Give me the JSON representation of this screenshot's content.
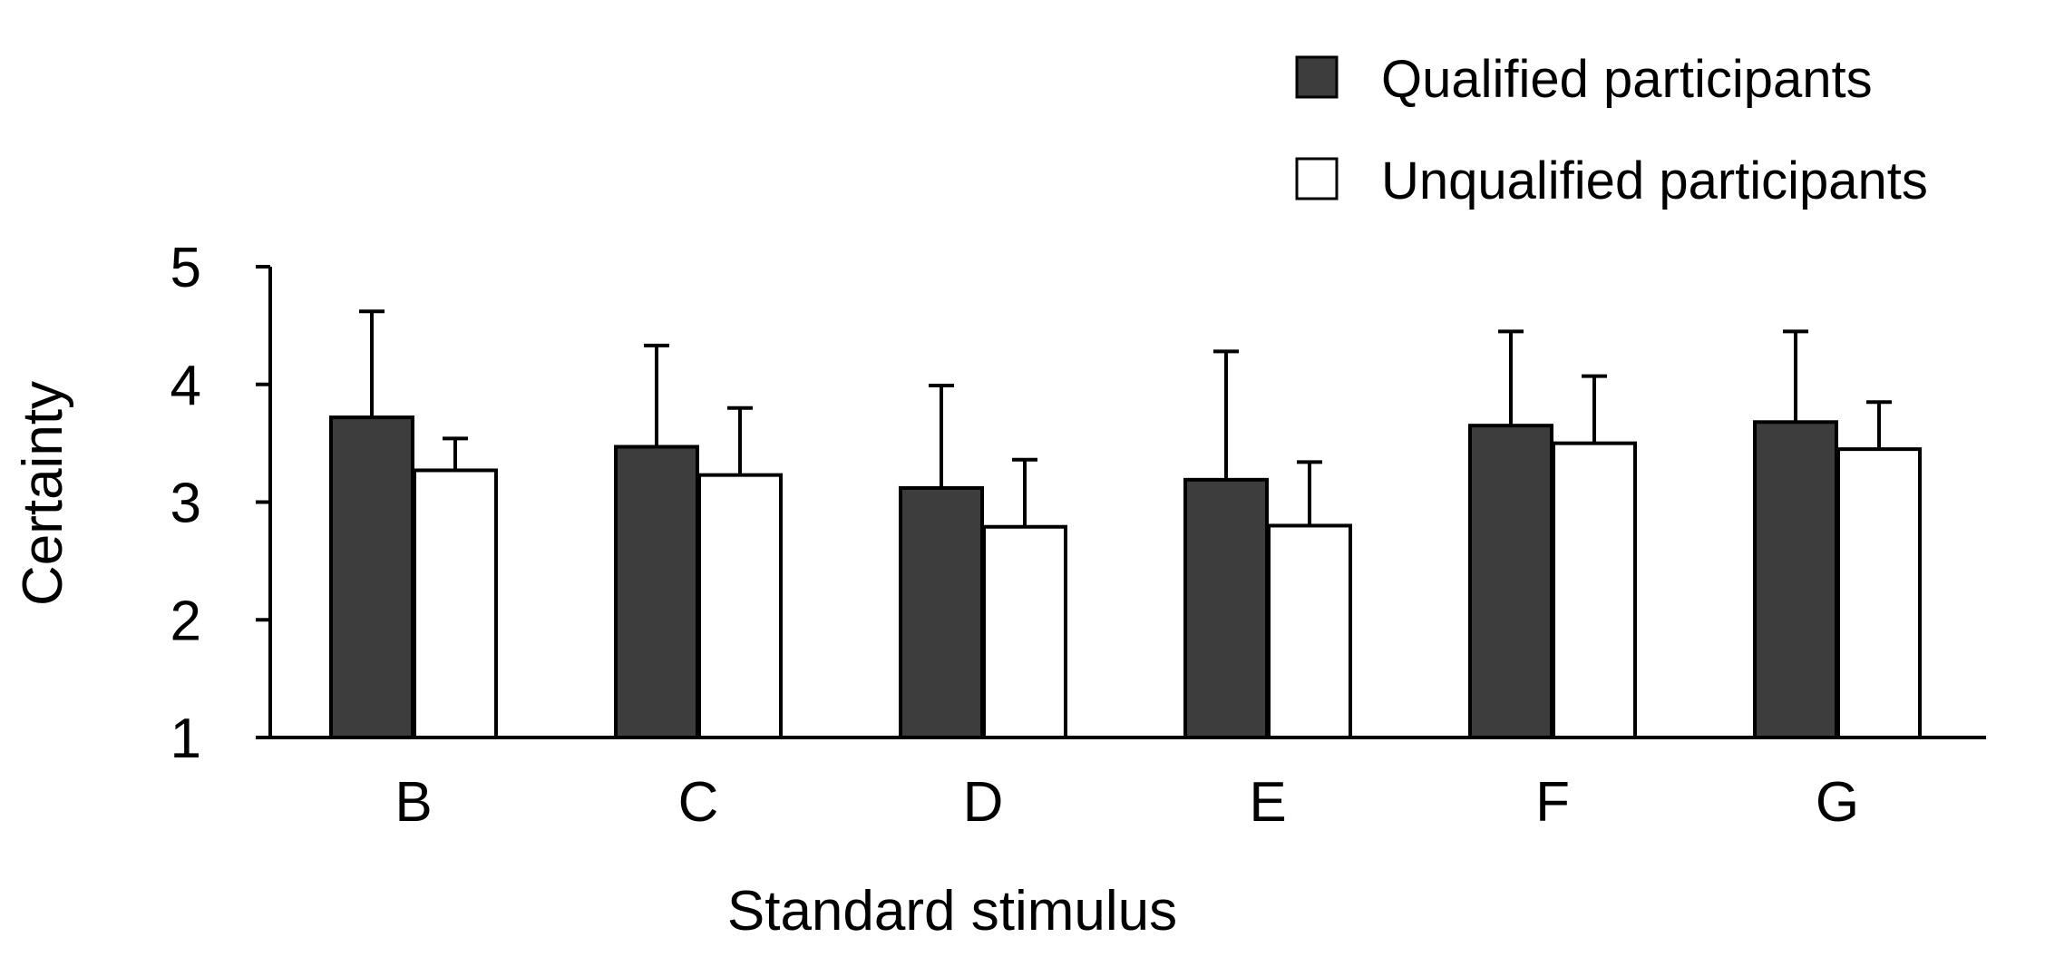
{
  "chart_data": {
    "type": "bar",
    "title": "",
    "xlabel": "Standard stimulus",
    "ylabel": "Certainty",
    "ylim": [
      1,
      5
    ],
    "yticks": [
      1,
      2,
      3,
      4,
      5
    ],
    "grid": false,
    "legend_position": "top-right",
    "categories": [
      "B",
      "C",
      "D",
      "E",
      "F",
      "G"
    ],
    "series": [
      {
        "name": "Qualified participants",
        "color": "#3d3d3d",
        "values": [
          3.72,
          3.47,
          3.12,
          3.19,
          3.65,
          3.68
        ],
        "error_upper": [
          0.9,
          0.86,
          0.87,
          1.09,
          0.8,
          0.77
        ]
      },
      {
        "name": "Unqualified participants",
        "color": "#ffffff",
        "values": [
          3.27,
          3.23,
          2.79,
          2.8,
          3.5,
          3.45
        ],
        "error_upper": [
          0.27,
          0.57,
          0.57,
          0.54,
          0.57,
          0.4
        ]
      }
    ]
  }
}
